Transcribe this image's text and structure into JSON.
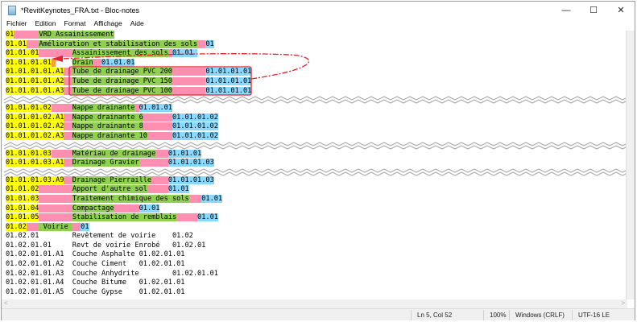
{
  "window": {
    "title": "*RevitKeynotes_FRA.txt - Bloc-notes",
    "minimize": "—",
    "maximize": "☐",
    "close": "✕"
  },
  "menu": [
    "Fichier",
    "Edition",
    "Format",
    "Affichage",
    "Aide"
  ],
  "colors": {
    "code": "#ffff00",
    "padding": "#ff8fb0",
    "description": "#8fd14f",
    "parent": "#87d9ff",
    "annotation": "#e8202a"
  },
  "blocks": [
    [
      [
        [
          "y",
          "01"
        ],
        [
          "p",
          "      "
        ],
        [
          "g",
          "VRD Assainissement"
        ]
      ],
      [
        [
          "y",
          "01.01"
        ],
        [
          "p",
          "   "
        ],
        [
          "g",
          "Amélioration et stabilisation des sols"
        ],
        [
          "p",
          "  "
        ],
        [
          "b",
          "01"
        ]
      ],
      [
        [
          "y",
          "01.01.01"
        ],
        [
          "p",
          "        "
        ],
        [
          "g",
          "Assainissement des sols"
        ],
        [
          "p",
          " "
        ],
        [
          "b",
          "01.01 "
        ]
      ],
      [
        [
          "y",
          "01.01.01.01"
        ],
        [
          "o",
          " "
        ],
        [
          "n",
          "    "
        ],
        [
          "g",
          "Drain"
        ],
        [
          "p",
          "  "
        ],
        [
          "b",
          "01.01.01"
        ]
      ],
      [
        [
          "y",
          "01.01.01.01.A1"
        ],
        [
          "p",
          "  "
        ],
        [
          "g",
          "Tube de drainage PVC 200"
        ],
        [
          "p",
          "        "
        ],
        [
          "b",
          "01.01.01.01"
        ]
      ],
      [
        [
          "y",
          "01.01.01.01.A2"
        ],
        [
          "p",
          "  "
        ],
        [
          "g",
          "Tube de drainage PVC 150"
        ],
        [
          "p",
          "        "
        ],
        [
          "b",
          "01.01.01.01"
        ]
      ],
      [
        [
          "y",
          "01.01.01.01.A3"
        ],
        [
          "p",
          "  "
        ],
        [
          "g",
          "Tube de drainage PVC 100"
        ],
        [
          "p",
          "        "
        ],
        [
          "b",
          "01.01.01.01"
        ]
      ]
    ],
    [
      [
        [
          "y",
          "01.01.01.02"
        ],
        [
          "p",
          "     "
        ],
        [
          "g",
          "Nappe drainante"
        ],
        [
          "p",
          " "
        ],
        [
          "b",
          "01.01.01"
        ]
      ],
      [
        [
          "y",
          "01.01.01.02.A1"
        ],
        [
          "p",
          "  "
        ],
        [
          "g",
          "Nappe drainante 6"
        ],
        [
          "p",
          "       "
        ],
        [
          "b",
          "01.01.01.02"
        ]
      ],
      [
        [
          "y",
          "01.01.01.02.A2"
        ],
        [
          "p",
          "  "
        ],
        [
          "g",
          "Nappe drainante 8"
        ],
        [
          "p",
          "       "
        ],
        [
          "b",
          "01.01.01.02"
        ]
      ],
      [
        [
          "y",
          "01.01.01.02.A3"
        ],
        [
          "p",
          "  "
        ],
        [
          "g",
          "Nappe drainante 10"
        ],
        [
          "p",
          "      "
        ],
        [
          "b",
          "01.01.01.02"
        ]
      ]
    ],
    [
      [
        [
          "y",
          "01.01.01.03"
        ],
        [
          "p",
          "     "
        ],
        [
          "g",
          "Matériau de drainage"
        ],
        [
          "p",
          "   "
        ],
        [
          "b",
          "01.01.01"
        ]
      ],
      [
        [
          "y",
          "01.01.01.03.A1"
        ],
        [
          "p",
          "  "
        ],
        [
          "g",
          "Drainage Gravier"
        ],
        [
          "p",
          "       "
        ],
        [
          "b",
          "01.01.01.03"
        ]
      ]
    ],
    [
      [
        [
          "y",
          "01.01.01.03.A9"
        ],
        [
          "p",
          "  "
        ],
        [
          "g",
          "Drainage Pierraille"
        ],
        [
          "p",
          "    "
        ],
        [
          "b",
          "01.01.01.03"
        ]
      ],
      [
        [
          "y",
          "01.01.02"
        ],
        [
          "p",
          "        "
        ],
        [
          "g",
          "Apport d'autre sol"
        ],
        [
          "p",
          "     "
        ],
        [
          "b",
          "01.01"
        ]
      ],
      [
        [
          "y",
          "01.01.03"
        ],
        [
          "p",
          "        "
        ],
        [
          "g",
          "Traitement chimique des sols"
        ],
        [
          "p",
          "   "
        ],
        [
          "b",
          "01.01"
        ]
      ],
      [
        [
          "y",
          "01.01.04"
        ],
        [
          "p",
          "        "
        ],
        [
          "g",
          "Compactage"
        ],
        [
          "p",
          "      "
        ],
        [
          "b",
          "01.01"
        ]
      ],
      [
        [
          "y",
          "01.01.05"
        ],
        [
          "p",
          "        "
        ],
        [
          "g",
          "Stabilisation de remblais"
        ],
        [
          "p",
          "     "
        ],
        [
          "b",
          "01.01"
        ]
      ],
      [
        [
          "y",
          "01.02"
        ],
        [
          "p",
          "   "
        ],
        [
          "g",
          " Voirie "
        ],
        [
          "p",
          "  "
        ],
        [
          "b",
          "01"
        ]
      ],
      [
        [
          "n",
          "01.02.01        Revêtement de voirie    01.02"
        ]
      ],
      [
        [
          "n",
          "01.02.01.01     Revt de voirie Enrobé   01.02.01"
        ]
      ],
      [
        [
          "n",
          "01.02.01.01.A1  Couche Asphalte 01.02.01.01"
        ]
      ],
      [
        [
          "n",
          "01.02.01.01.A2  Couche Ciment   01.02.01.01"
        ]
      ],
      [
        [
          "n",
          "01.02.01.01.A3  Couche Anhydrite        01.02.01.01"
        ]
      ],
      [
        [
          "n",
          "01.02.01.01.A4  Couche Bitume   01.02.01.01"
        ]
      ],
      [
        [
          "n",
          "01.02.01.01.A5  Couche Gypse    01.02.01.01"
        ]
      ]
    ]
  ],
  "status": {
    "position": "Ln 5, Col 52",
    "zoom": "100%",
    "line_ending": "Windows (CRLF)",
    "encoding": "UTF-16 LE"
  },
  "icons": {
    "app": "notepad-icon",
    "scroll_left": "<",
    "scroll_right": ">"
  }
}
